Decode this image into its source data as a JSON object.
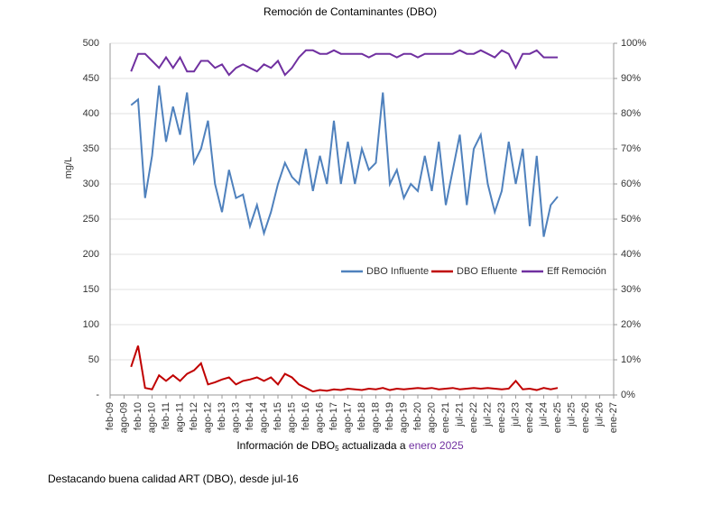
{
  "chart_data": {
    "type": "line",
    "title": "Remoción de Contaminantes (DBO)",
    "y_label": "mg/L",
    "categories": [
      "feb-09",
      null,
      "ago-09",
      null,
      "feb-10",
      null,
      "ago-10",
      null,
      "feb-11",
      null,
      "ago-11",
      null,
      "feb-12",
      null,
      "ago-12",
      null,
      "feb-13",
      null,
      "ago-13",
      null,
      "feb-14",
      null,
      "ago-14",
      null,
      "feb-15",
      null,
      "ago-15",
      null,
      "feb-16",
      null,
      "ago-16",
      null,
      "feb-17",
      null,
      "ago-17",
      null,
      "feb-18",
      null,
      "ago-18",
      null,
      "feb-19",
      null,
      "ago-19",
      null,
      "feb-20",
      null,
      "ago-20",
      null,
      "ene-21",
      null,
      "jul-21",
      null,
      "ene-22",
      null,
      "jul-22",
      null,
      "ene-23",
      null,
      "jul-23",
      null,
      "ene-24",
      null,
      "jul-24",
      null,
      "ene-25",
      null,
      "jul-25",
      null,
      "ene-26",
      null,
      "jul-26",
      null,
      "ene-27"
    ],
    "series": [
      {
        "name": "DBO Influente",
        "color": "#4f81bd",
        "axis": "y",
        "values": [
          null,
          null,
          null,
          412,
          420,
          280,
          340,
          440,
          360,
          410,
          370,
          430,
          330,
          350,
          390,
          300,
          260,
          320,
          280,
          285,
          240,
          270,
          230,
          260,
          300,
          330,
          310,
          300,
          350,
          290,
          340,
          300,
          390,
          300,
          360,
          300,
          350,
          320,
          330,
          430,
          300,
          320,
          280,
          300,
          290,
          340,
          290,
          360,
          270,
          320,
          370,
          270,
          350,
          370,
          300,
          260,
          290,
          360,
          300,
          350,
          240,
          340,
          225,
          270,
          282,
          null,
          null,
          null,
          null,
          null,
          null,
          null,
          null
        ]
      },
      {
        "name": "DBO Efluente",
        "color": "#c00000",
        "axis": "y",
        "values": [
          null,
          null,
          null,
          40,
          70,
          10,
          8,
          28,
          20,
          28,
          20,
          30,
          35,
          45,
          15,
          18,
          22,
          25,
          15,
          20,
          22,
          25,
          20,
          25,
          15,
          30,
          25,
          15,
          10,
          5,
          7,
          6,
          8,
          7,
          9,
          8,
          7,
          9,
          8,
          10,
          7,
          9,
          8,
          9,
          10,
          9,
          10,
          8,
          9,
          10,
          8,
          9,
          10,
          9,
          10,
          9,
          8,
          9,
          20,
          8,
          9,
          7,
          10,
          8,
          10,
          null,
          null,
          null,
          null,
          null,
          null,
          null,
          null
        ]
      },
      {
        "name": "Eff Remoción",
        "color": "#7030a0",
        "axis": "y2",
        "values": [
          null,
          null,
          null,
          92,
          97,
          97,
          95,
          93,
          96,
          93,
          96,
          92,
          92,
          95,
          95,
          93,
          94,
          91,
          93,
          94,
          93,
          92,
          94,
          93,
          95,
          91,
          93,
          96,
          98,
          98,
          97,
          97,
          98,
          97,
          97,
          97,
          97,
          96,
          97,
          97,
          97,
          96,
          97,
          97,
          96,
          97,
          97,
          97,
          97,
          97,
          98,
          97,
          97,
          98,
          97,
          96,
          98,
          97,
          93,
          97,
          97,
          98,
          96,
          96,
          96,
          null,
          null,
          null,
          null,
          null,
          null,
          null,
          null
        ]
      }
    ],
    "ylim": [
      0,
      500
    ],
    "yticks": [
      {
        "value": 0,
        "label": "-"
      },
      50,
      100,
      150,
      200,
      250,
      300,
      350,
      400,
      450,
      500
    ],
    "y2lim": [
      0,
      100
    ],
    "y2ticks": [
      {
        "value": 0,
        "label": "0%"
      },
      {
        "value": 10,
        "label": "10%"
      },
      {
        "value": 20,
        "label": "20%"
      },
      {
        "value": 30,
        "label": "30%"
      },
      {
        "value": 40,
        "label": "40%"
      },
      {
        "value": 50,
        "label": "50%"
      },
      {
        "value": 60,
        "label": "60%"
      },
      {
        "value": 70,
        "label": "70%"
      },
      {
        "value": 80,
        "label": "80%"
      },
      {
        "value": 90,
        "label": "90%"
      },
      {
        "value": 100,
        "label": "100%"
      }
    ],
    "grid": true,
    "legend": "right",
    "note": {
      "before": "Información de DBO",
      "sub": "5",
      "after": " actualizada a ",
      "highlight": "enero 2025"
    },
    "footer": "Destacando buena calidad ART (DBO), desde jul-16"
  }
}
